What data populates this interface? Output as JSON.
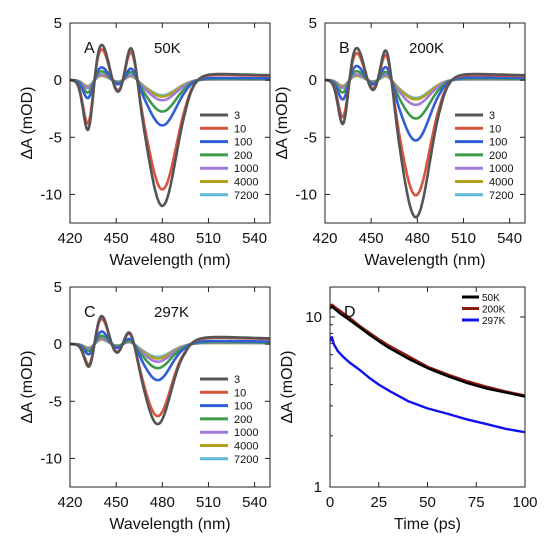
{
  "chart_data": [
    {
      "id": "A",
      "type": "line",
      "panel_label": "A",
      "temperature_label": "50K",
      "xlabel": "Wavelength (nm)",
      "ylabel": "ΔA (mOD)",
      "xlim": [
        420,
        550
      ],
      "ylim": [
        -12.5,
        5
      ],
      "xticks": [
        420,
        450,
        480,
        510,
        540
      ],
      "yticks": [
        5,
        0,
        -5,
        -10
      ],
      "legend_position": "lower-right",
      "series": [
        {
          "name": "3",
          "color": "#555555",
          "amp": 1.0
        },
        {
          "name": "10",
          "color": "#d9543f",
          "amp": 0.87
        },
        {
          "name": "100",
          "color": "#2f5fd6",
          "amp": 0.36
        },
        {
          "name": "200",
          "color": "#3e9a4b",
          "amp": 0.25
        },
        {
          "name": "1000",
          "color": "#a37ad8",
          "amp": 0.16
        },
        {
          "name": "4000",
          "color": "#b3a11e",
          "amp": 0.13
        },
        {
          "name": "7200",
          "color": "#5fb8d8",
          "amp": 0.12
        }
      ],
      "peaks": {
        "neg1": {
          "x": 432,
          "y": -5.2,
          "w": 3.2
        },
        "pos1": {
          "x": 440,
          "y": 3.3,
          "w": 5
        },
        "neg2": {
          "x": 451,
          "y": -1.4,
          "w": 4
        },
        "pos2": {
          "x": 460,
          "y": 3.8,
          "w": 3.6
        },
        "neg3": {
          "x": 480,
          "y": -11,
          "w": 9
        },
        "tail": 0.6
      }
    },
    {
      "id": "B",
      "type": "line",
      "panel_label": "B",
      "temperature_label": "200K",
      "xlabel": "Wavelength (nm)",
      "ylabel": "ΔA (mOD)",
      "xlim": [
        420,
        550
      ],
      "ylim": [
        -12.5,
        5
      ],
      "xticks": [
        420,
        450,
        480,
        510,
        540
      ],
      "yticks": [
        5,
        0,
        -5,
        -10
      ],
      "legend_position": "lower-right",
      "series": [
        {
          "name": "3",
          "color": "#555555",
          "amp": 1.0
        },
        {
          "name": "10",
          "color": "#d9543f",
          "amp": 0.84
        },
        {
          "name": "100",
          "color": "#2f5fd6",
          "amp": 0.44
        },
        {
          "name": "200",
          "color": "#3e9a4b",
          "amp": 0.28
        },
        {
          "name": "1000",
          "color": "#a37ad8",
          "amp": 0.18
        },
        {
          "name": "4000",
          "color": "#b3a11e",
          "amp": 0.14
        },
        {
          "name": "7200",
          "color": "#5fb8d8",
          "amp": 0.13
        }
      ],
      "peaks": {
        "neg1": {
          "x": 432,
          "y": -4.6,
          "w": 3.2
        },
        "pos1": {
          "x": 440,
          "y": 3.0,
          "w": 5
        },
        "neg2": {
          "x": 451,
          "y": -1.2,
          "w": 4
        },
        "pos2": {
          "x": 460,
          "y": 3.9,
          "w": 3.6
        },
        "neg3": {
          "x": 479,
          "y": -12,
          "w": 9
        },
        "tail": 0.6
      }
    },
    {
      "id": "C",
      "type": "line",
      "panel_label": "C",
      "temperature_label": "297K",
      "xlabel": "Wavelength (nm)",
      "ylabel": "ΔA (mOD)",
      "xlim": [
        420,
        550
      ],
      "ylim": [
        -12.5,
        5
      ],
      "xticks": [
        420,
        450,
        480,
        510,
        540
      ],
      "yticks": [
        5,
        0,
        -5,
        -10
      ],
      "legend_position": "lower-right",
      "series": [
        {
          "name": "3",
          "color": "#555555",
          "amp": 1.0
        },
        {
          "name": "10",
          "color": "#d9543f",
          "amp": 0.9
        },
        {
          "name": "100",
          "color": "#2f5fd6",
          "amp": 0.45
        },
        {
          "name": "200",
          "color": "#3e9a4b",
          "amp": 0.3
        },
        {
          "name": "1000",
          "color": "#a37ad8",
          "amp": 0.22
        },
        {
          "name": "4000",
          "color": "#b3a11e",
          "amp": 0.18
        },
        {
          "name": "7200",
          "color": "#5fb8d8",
          "amp": 0.16
        }
      ],
      "peaks": {
        "neg1": {
          "x": 433,
          "y": -2.7,
          "w": 3.2
        },
        "pos1": {
          "x": 440,
          "y": 2.7,
          "w": 4.6
        },
        "neg2": {
          "x": 450,
          "y": -1.0,
          "w": 4
        },
        "pos2": {
          "x": 459,
          "y": 1.8,
          "w": 3.6
        },
        "neg3": {
          "x": 477,
          "y": -7.0,
          "w": 8.5
        },
        "tail": 0.7
      }
    },
    {
      "id": "D",
      "type": "line",
      "panel_label": "D",
      "xlabel": "Time (ps)",
      "ylabel": "ΔA (mOD)",
      "xlim": [
        0,
        100
      ],
      "ylim": [
        1,
        15
      ],
      "yscale": "log",
      "xticks": [
        0,
        25,
        50,
        75,
        100
      ],
      "yticks": [
        1,
        10
      ],
      "legend_position": "top-right",
      "series": [
        {
          "name": "50K",
          "color": "#000000",
          "x": [
            0,
            1,
            3,
            5,
            10,
            15,
            20,
            25,
            30,
            40,
            50,
            60,
            70,
            80,
            90,
            100
          ],
          "y": [
            11.2,
            11.5,
            11.0,
            10.5,
            9.6,
            8.7,
            7.9,
            7.2,
            6.6,
            5.7,
            5.0,
            4.5,
            4.1,
            3.8,
            3.6,
            3.4
          ]
        },
        {
          "name": "200K",
          "color": "#8b1a0e",
          "x": [
            0,
            1,
            3,
            5,
            10,
            15,
            20,
            25,
            30,
            40,
            50,
            60,
            70,
            80,
            90,
            100
          ],
          "y": [
            11.5,
            11.8,
            11.3,
            10.9,
            9.9,
            8.9,
            8.1,
            7.4,
            6.8,
            5.9,
            5.1,
            4.6,
            4.2,
            3.9,
            3.65,
            3.45
          ]
        },
        {
          "name": "297K",
          "color": "#1111ee",
          "x": [
            0,
            1,
            2,
            4,
            7,
            10,
            15,
            20,
            25,
            30,
            40,
            50,
            60,
            70,
            80,
            90,
            100
          ],
          "y": [
            7.2,
            7.6,
            6.9,
            6.3,
            5.8,
            5.4,
            4.9,
            4.4,
            4.0,
            3.7,
            3.2,
            2.9,
            2.7,
            2.5,
            2.35,
            2.2,
            2.1
          ]
        }
      ]
    }
  ]
}
